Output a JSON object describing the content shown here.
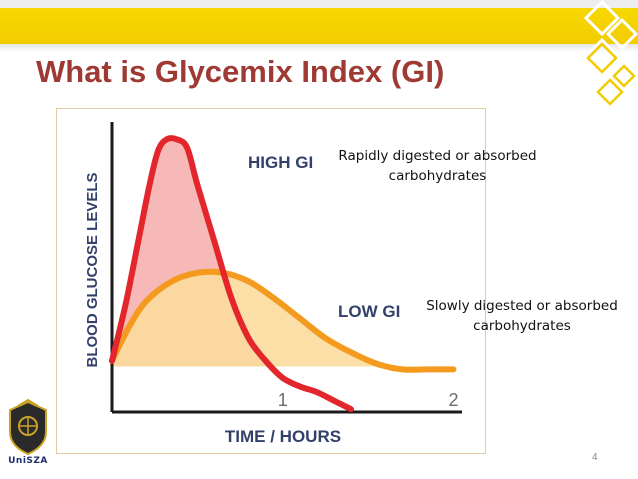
{
  "slide": {
    "title": "What is Glycemix Index (GI)",
    "page_number": "4",
    "logo_text": "UniSZA",
    "note_rapid_line1": "Rapidly digested or absorbed",
    "note_rapid_line2": "carbohydrates",
    "note_slow_line1": "Slowly digested or absorbed",
    "note_slow_line2": "carbohydrates",
    "colors": {
      "title": "#9e3a33",
      "band": "#f2cc00",
      "accent_deco": "#f2cc00"
    }
  },
  "chart_data": {
    "type": "area",
    "title": "",
    "xlabel": "TIME / HOURS",
    "ylabel": "BLOOD GLUCOSE LEVELS",
    "x_ticks": [
      "1",
      "2"
    ],
    "xlim": [
      0,
      2.05
    ],
    "ylim": [
      0,
      100
    ],
    "grid": false,
    "baseline": 16,
    "series": [
      {
        "name": "HIGH GI",
        "color": "#e3262b",
        "fill": "#f6b9b8",
        "points": [
          [
            0,
            18
          ],
          [
            0.08,
            38
          ],
          [
            0.16,
            62
          ],
          [
            0.22,
            80
          ],
          [
            0.27,
            92
          ],
          [
            0.32,
            96
          ],
          [
            0.38,
            96
          ],
          [
            0.44,
            93
          ],
          [
            0.5,
            80
          ],
          [
            0.6,
            60
          ],
          [
            0.7,
            40
          ],
          [
            0.8,
            26
          ],
          [
            0.9,
            18
          ],
          [
            1.0,
            12
          ],
          [
            1.1,
            9
          ],
          [
            1.2,
            7
          ],
          [
            1.3,
            4
          ],
          [
            1.4,
            1
          ]
        ]
      },
      {
        "name": "LOW GI",
        "color": "#f39a1f",
        "fill": "#fbdc9c",
        "points": [
          [
            0,
            18
          ],
          [
            0.1,
            30
          ],
          [
            0.2,
            39
          ],
          [
            0.35,
            46
          ],
          [
            0.5,
            49
          ],
          [
            0.65,
            49
          ],
          [
            0.8,
            46
          ],
          [
            0.95,
            40
          ],
          [
            1.1,
            33
          ],
          [
            1.25,
            26
          ],
          [
            1.4,
            21
          ],
          [
            1.55,
            17
          ],
          [
            1.7,
            15
          ],
          [
            1.85,
            15
          ],
          [
            2.0,
            15
          ]
        ]
      }
    ]
  }
}
